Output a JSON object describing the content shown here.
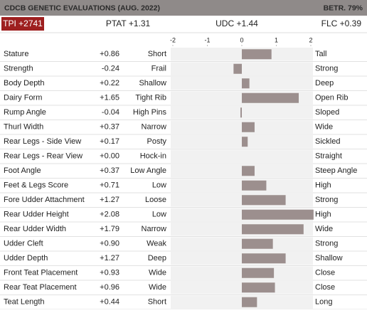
{
  "header": {
    "title": "CDCB GENETIC EVALUATIONS (AUG. 2022)",
    "reliability": "BETR. 79%",
    "indexes": [
      "TPI +2741",
      "PTAT +1.31",
      "UDC +1.44",
      "FLC +0.39"
    ]
  },
  "chart_data": {
    "type": "bar",
    "orientation": "horizontal",
    "categories": [
      "Stature",
      "Strength",
      "Body Depth",
      "Dairy Form",
      "Rump Angle",
      "Thurl Width",
      "Rear Legs - Side View",
      "Rear Legs - Rear View",
      "Foot Angle",
      "Feet & Legs Score",
      "Fore Udder Attachment",
      "Rear Udder Height",
      "Rear Udder Width",
      "Udder Cleft",
      "Udder Depth",
      "Front Teat Placement",
      "Rear Teat Placement",
      "Teat Length"
    ],
    "values": [
      0.86,
      -0.24,
      0.22,
      1.65,
      -0.04,
      0.37,
      0.17,
      0.0,
      0.37,
      0.71,
      1.27,
      2.08,
      1.79,
      0.9,
      1.27,
      0.93,
      0.96,
      0.44
    ],
    "value_labels": [
      "+0.86",
      "-0.24",
      "+0.22",
      "+1.65",
      "-0.04",
      "+0.37",
      "+0.17",
      "+0.00",
      "+0.37",
      "+0.71",
      "+1.27",
      "+2.08",
      "+1.79",
      "+0.90",
      "+1.27",
      "+0.93",
      "+0.96",
      "+0.44"
    ],
    "low_labels": [
      "Short",
      "Frail",
      "Shallow",
      "Tight Rib",
      "High Pins",
      "Narrow",
      "Posty",
      "Hock-in",
      "Low Angle",
      "Low",
      "Loose",
      "Low",
      "Narrow",
      "Weak",
      "Deep",
      "Wide",
      "Wide",
      "Short"
    ],
    "high_labels": [
      "Tall",
      "Strong",
      "Deep",
      "Open Rib",
      "Sloped",
      "Wide",
      "Sickled",
      "Straight",
      "Steep Angle",
      "High",
      "Strong",
      "High",
      "Wide",
      "Strong",
      "Shallow",
      "Close",
      "Close",
      "Long"
    ],
    "color": "#9c8f8e",
    "xlim": [
      -2,
      2
    ],
    "xticks": [
      -2,
      -1,
      0,
      1,
      2
    ]
  }
}
